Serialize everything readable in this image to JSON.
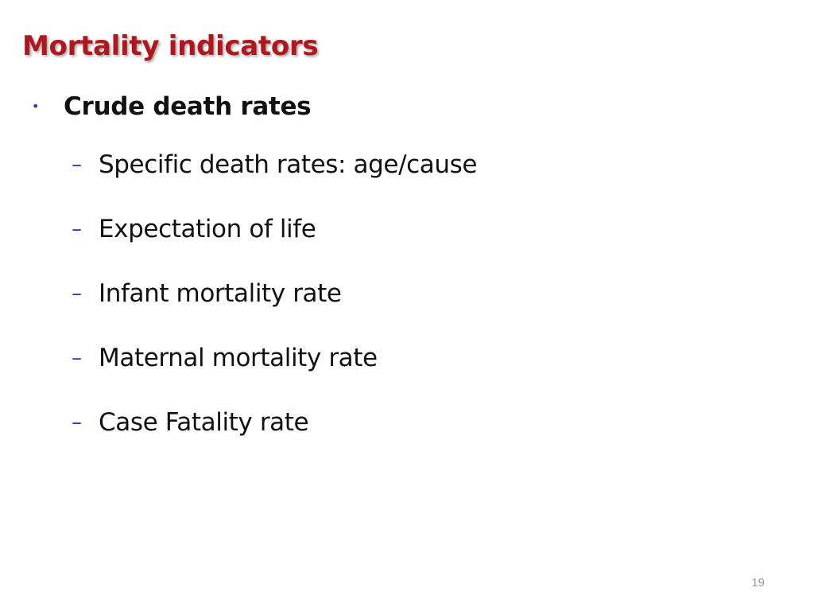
{
  "slide": {
    "title": "Mortality indicators",
    "bullet": {
      "marker": "•",
      "text": "Crude death rates"
    },
    "sub_items": [
      {
        "marker": "–",
        "text": "Specific death rates: age/cause"
      },
      {
        "marker": "–",
        "text": "Expectation of life"
      },
      {
        "marker": "–",
        "text": "Infant mortality rate"
      },
      {
        "marker": "–",
        "text": "Maternal mortality rate"
      },
      {
        "marker": "–",
        "text": "Case Fatality rate"
      }
    ],
    "page_number": "19"
  },
  "colors": {
    "title": "#b0161e",
    "bullet_marker": "#2b3da8",
    "text": "#111111",
    "page_number": "#9a9a9a"
  }
}
